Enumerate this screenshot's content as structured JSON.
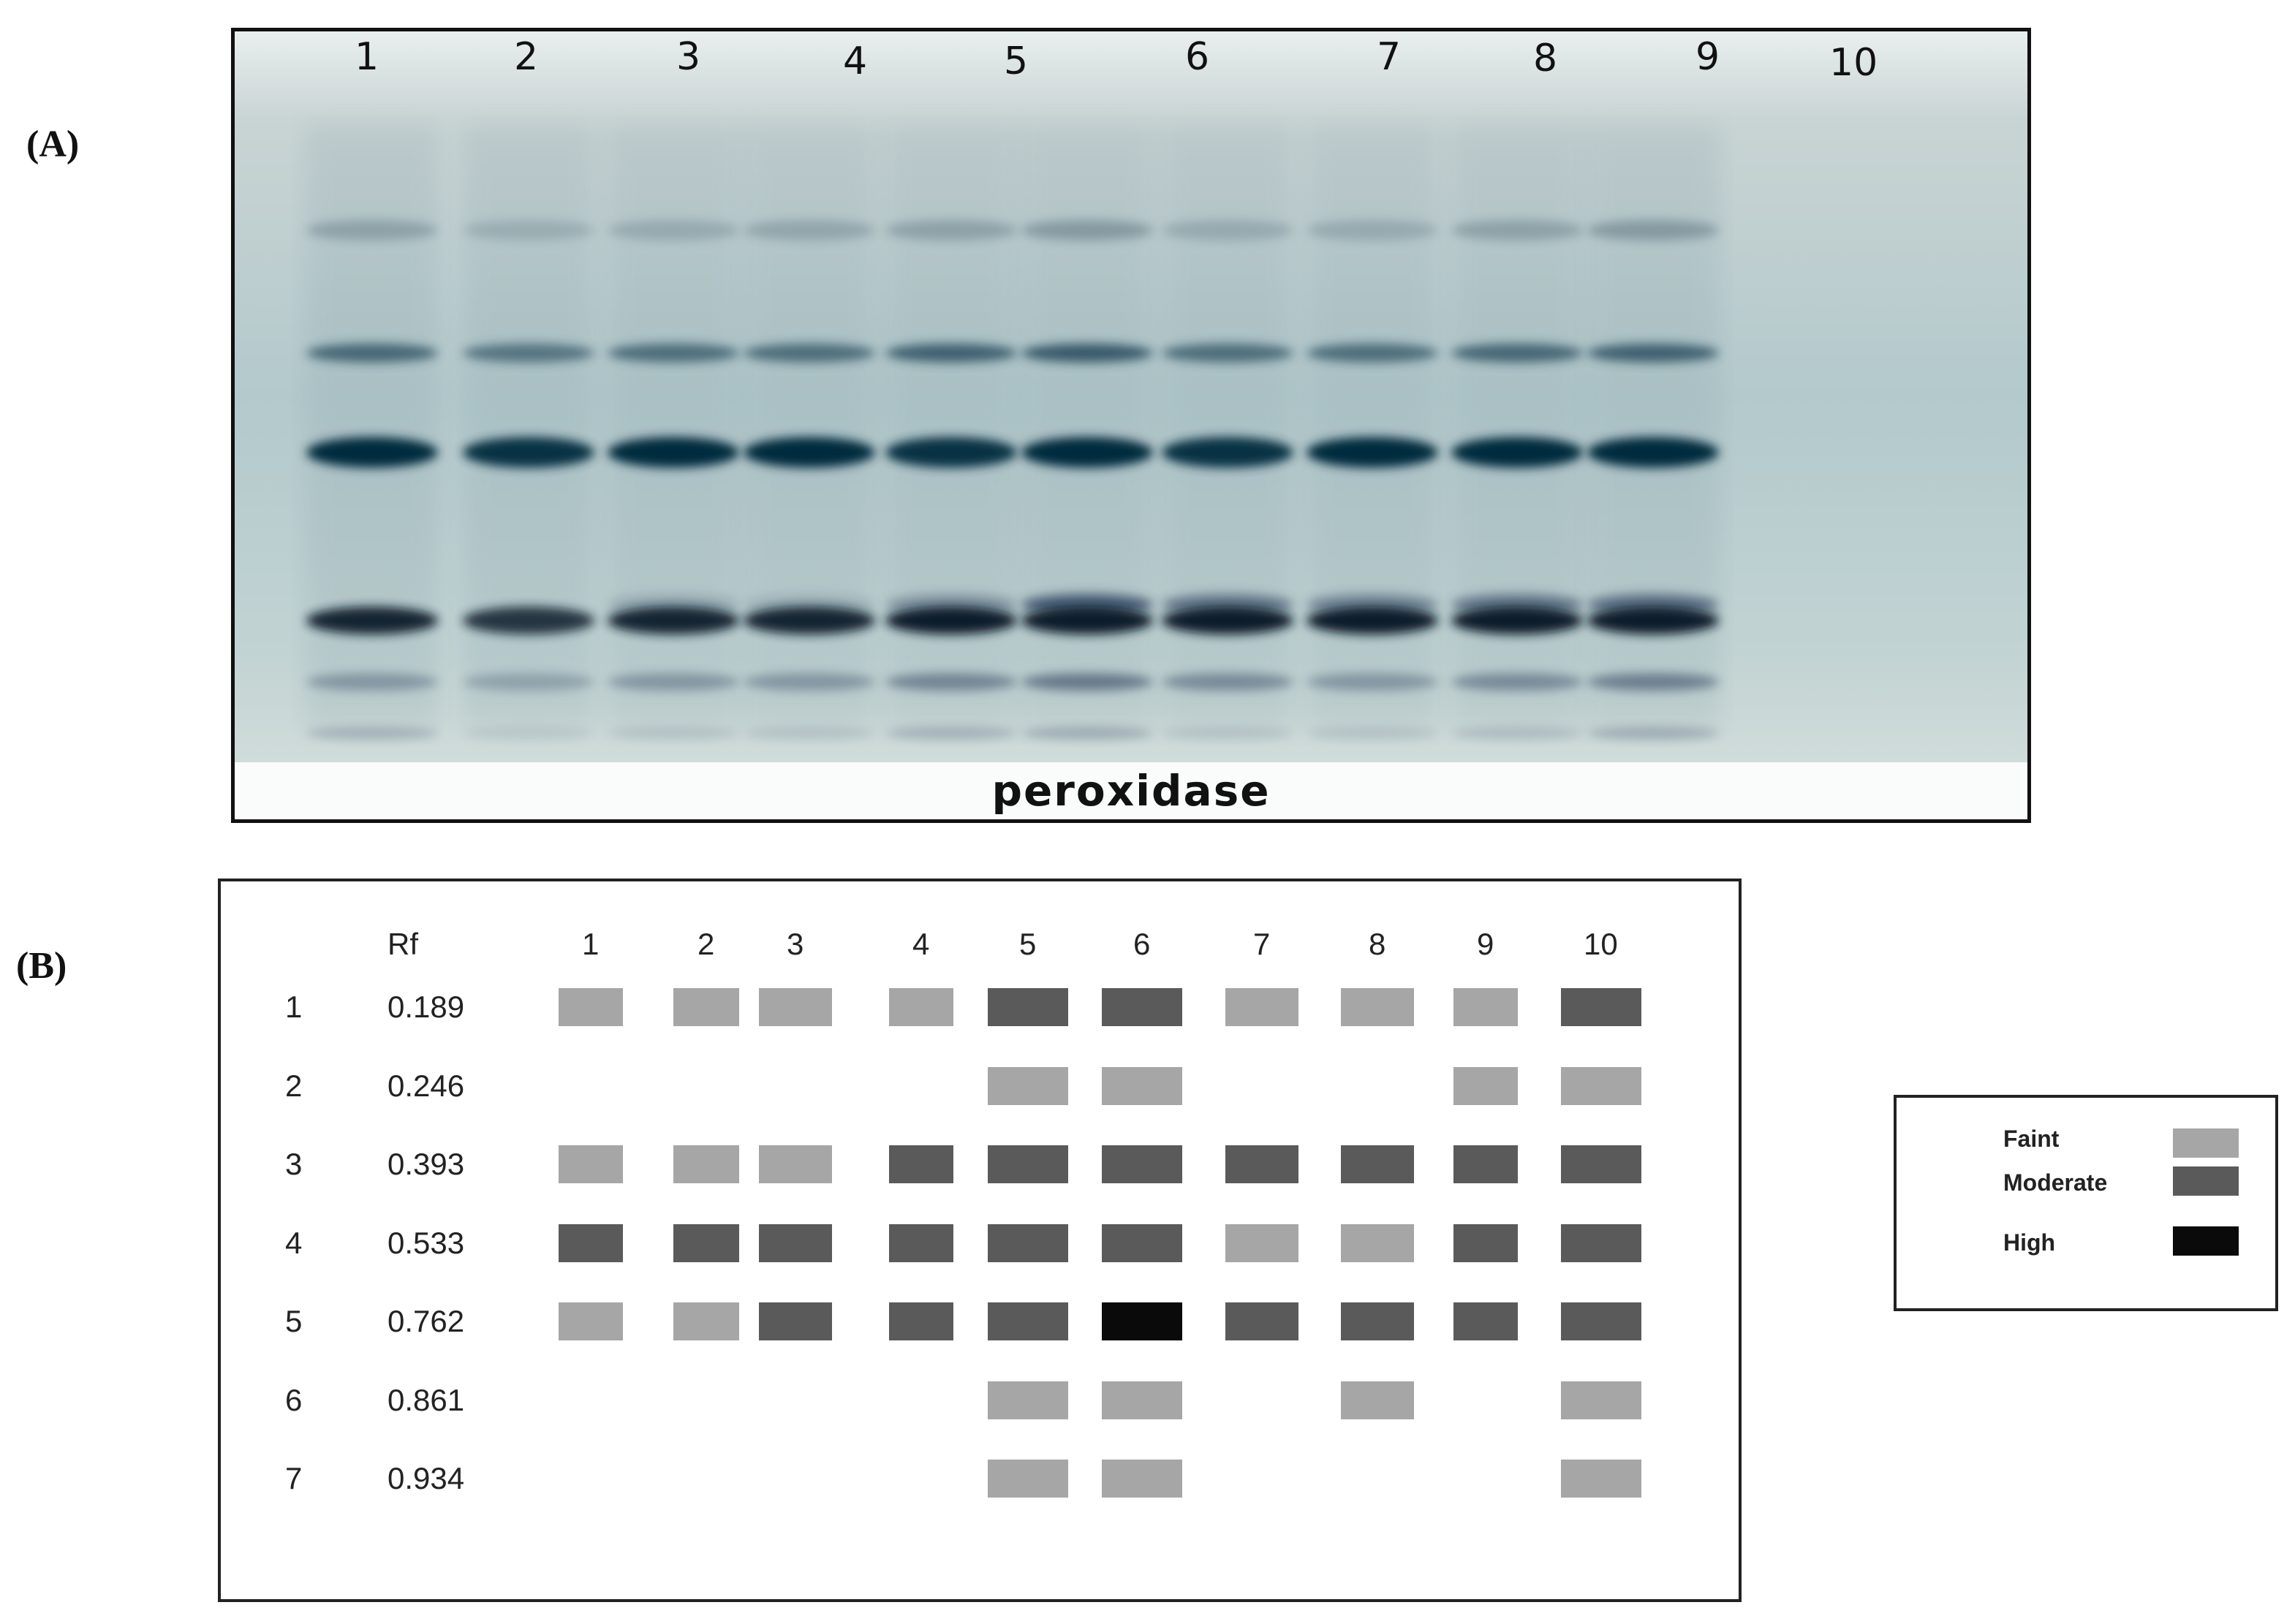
{
  "panel_labels": {
    "a": "(A)",
    "b": "(B)"
  },
  "gel": {
    "caption": "peroxidase",
    "lanes": [
      "1",
      "2",
      "3",
      "4",
      "5",
      "6",
      "7",
      "8",
      "9",
      "10"
    ]
  },
  "zymogram": {
    "rf_header": "Rf",
    "lane_headers": [
      "1",
      "2",
      "3",
      "4",
      "5",
      "6",
      "7",
      "8",
      "9",
      "10"
    ],
    "bands": [
      {
        "band": "1",
        "rf": "0.189",
        "intensity": [
          "faint",
          "faint",
          "faint",
          "faint",
          "moderate",
          "moderate",
          "faint",
          "faint",
          "faint",
          "moderate"
        ]
      },
      {
        "band": "2",
        "rf": "0.246",
        "intensity": [
          "",
          "",
          "",
          "",
          "faint",
          "faint",
          "",
          "",
          "faint",
          "faint"
        ]
      },
      {
        "band": "3",
        "rf": "0.393",
        "intensity": [
          "faint",
          "faint",
          "faint",
          "moderate",
          "moderate",
          "moderate",
          "moderate",
          "moderate",
          "moderate",
          "moderate"
        ]
      },
      {
        "band": "4",
        "rf": "0.533",
        "intensity": [
          "moderate",
          "moderate",
          "moderate",
          "moderate",
          "moderate",
          "moderate",
          "faint",
          "faint",
          "moderate",
          "moderate"
        ]
      },
      {
        "band": "5",
        "rf": "0.762",
        "intensity": [
          "faint",
          "faint",
          "moderate",
          "moderate",
          "moderate",
          "high",
          "moderate",
          "moderate",
          "moderate",
          "moderate"
        ]
      },
      {
        "band": "6",
        "rf": "0.861",
        "intensity": [
          "",
          "",
          "",
          "",
          "faint",
          "faint",
          "",
          "faint",
          "",
          "faint"
        ]
      },
      {
        "band": "7",
        "rf": "0.934",
        "intensity": [
          "",
          "",
          "",
          "",
          "faint",
          "faint",
          "",
          "",
          "",
          "faint"
        ]
      }
    ]
  },
  "legend": {
    "items": [
      {
        "key": "faint",
        "label": "Faint",
        "color": "#a6a6a6"
      },
      {
        "key": "moderate",
        "label": "Moderate",
        "color": "#5a5a5a"
      },
      {
        "key": "high",
        "label": "High",
        "color": "#0a0a0a"
      }
    ]
  }
}
